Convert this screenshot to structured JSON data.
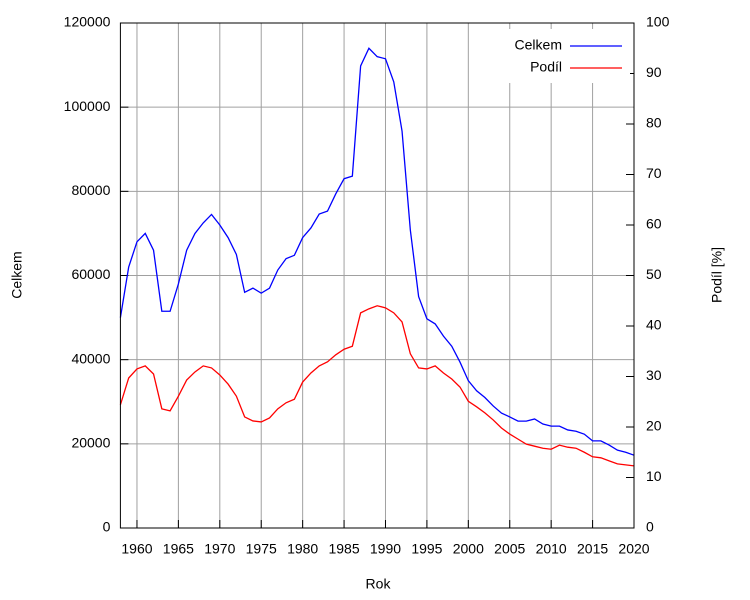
{
  "chart_data": {
    "type": "line",
    "x_label": "Rok",
    "y_label": "Celkem",
    "y2_label": "Podíl [%]",
    "x": [
      1958,
      1959,
      1960,
      1961,
      1962,
      1963,
      1964,
      1965,
      1966,
      1967,
      1968,
      1969,
      1970,
      1971,
      1972,
      1973,
      1974,
      1975,
      1976,
      1977,
      1978,
      1979,
      1980,
      1981,
      1982,
      1983,
      1984,
      1985,
      1986,
      1987,
      1988,
      1989,
      1990,
      1991,
      1992,
      1993,
      1994,
      1995,
      1996,
      1997,
      1998,
      1999,
      2000,
      2001,
      2002,
      2003,
      2004,
      2005,
      2006,
      2007,
      2008,
      2009,
      2010,
      2011,
      2012,
      2013,
      2014,
      2015,
      2016,
      2017,
      2018,
      2019,
      2020
    ],
    "series": [
      {
        "name": "Celkem",
        "color": "#0000ff",
        "values": [
          50000,
          62000,
          68000,
          70000,
          66000,
          51500,
          51500,
          58000,
          66000,
          70000,
          72500,
          74500,
          72000,
          69000,
          65000,
          56000,
          57000,
          55800,
          57000,
          61300,
          64000,
          64800,
          69000,
          71300,
          74600,
          75300,
          79400,
          83000,
          83600,
          109800,
          114000,
          112000,
          111500,
          106000,
          94300,
          70800,
          55000,
          49700,
          48500,
          45600,
          43200,
          39400,
          35000,
          32600,
          31000,
          29000,
          27300,
          26400,
          25400,
          25400,
          25900,
          24700,
          24200,
          24200,
          23300,
          23000,
          22300,
          20700,
          20700,
          19700,
          18500,
          18000,
          17300
        ]
      },
      {
        "name": "Podíl",
        "color": "#ff0000",
        "axis": "y2",
        "values": [
          24.4,
          29.7,
          31.5,
          32.1,
          30.5,
          23.6,
          23.2,
          26.1,
          29.3,
          30.9,
          32.1,
          31.7,
          30.3,
          28.5,
          26.1,
          22,
          21.2,
          21,
          21.8,
          23.6,
          24.8,
          25.5,
          28.9,
          30.7,
          32.1,
          32.9,
          34.3,
          35.4,
          36,
          42.6,
          43.4,
          44,
          43.6,
          42.6,
          40.8,
          34.5,
          31.7,
          31.5,
          32.1,
          30.7,
          29.5,
          27.9,
          25.1,
          24,
          22.8,
          21.4,
          19.8,
          18.6,
          17.6,
          16.6,
          16.2,
          15.8,
          15.6,
          16.4,
          16,
          15.8,
          15,
          14.1,
          13.9,
          13.3,
          12.7,
          12.5,
          12.3
        ]
      }
    ],
    "xlim": [
      1958,
      2020
    ],
    "xticks": [
      1960,
      1965,
      1970,
      1975,
      1980,
      1985,
      1990,
      1995,
      2000,
      2005,
      2010,
      2015,
      2020
    ],
    "ylim": [
      0,
      120000
    ],
    "yticks": [
      0,
      20000,
      40000,
      60000,
      80000,
      100000,
      120000
    ],
    "y2lim": [
      0,
      100
    ],
    "y2ticks": [
      0,
      10,
      20,
      30,
      40,
      50,
      60,
      70,
      80,
      90,
      100
    ],
    "grid": true,
    "legend": "upper right"
  }
}
